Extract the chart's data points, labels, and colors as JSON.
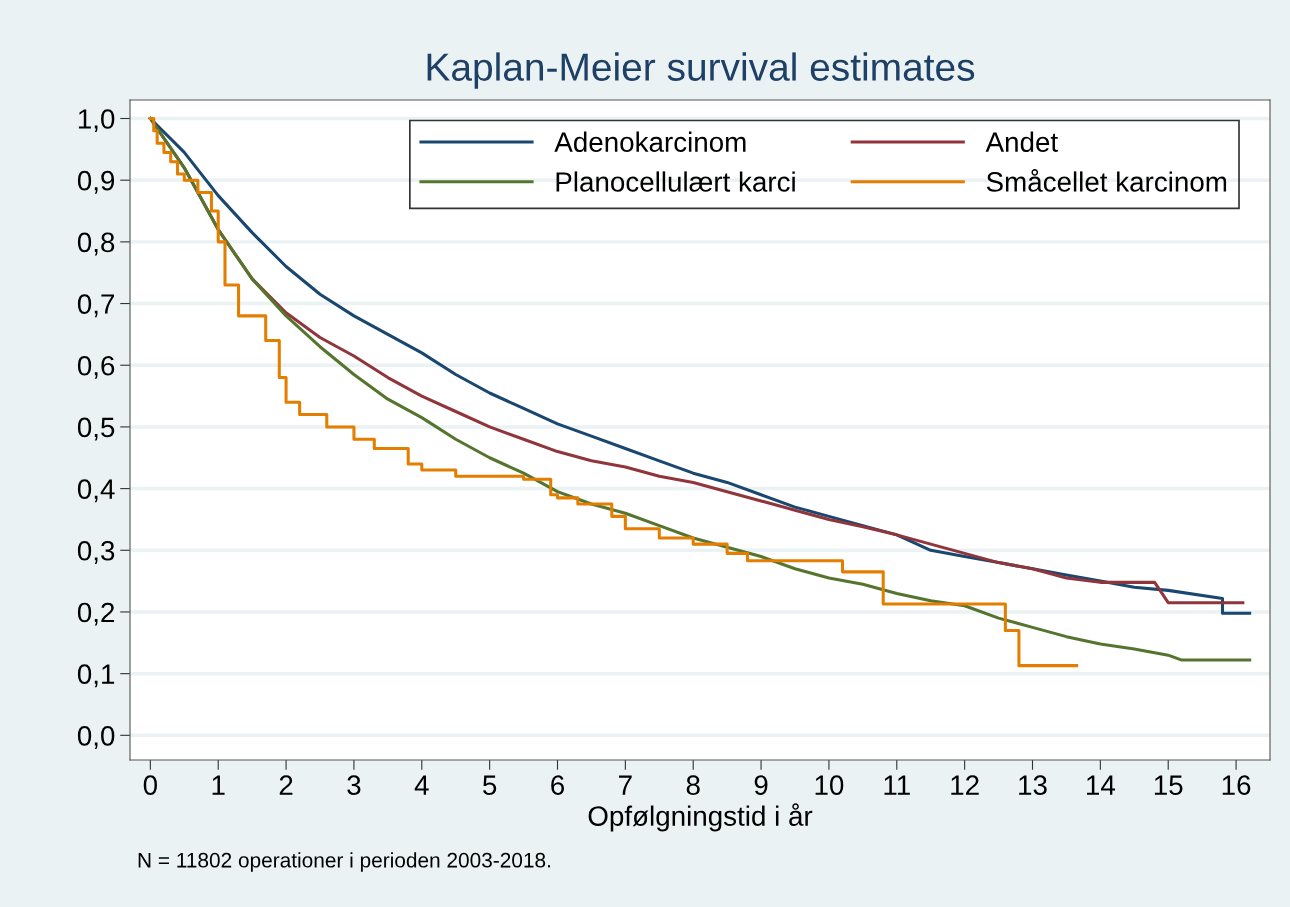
{
  "chart_data": {
    "type": "step",
    "title": "Kaplan-Meier survival estimates",
    "xlabel": "Opfølgningstid i år",
    "annotations": [
      "N = 11802 operationer i perioden 2003-2018."
    ],
    "xlim": [
      -0.3,
      16.5
    ],
    "xticks": [
      0,
      1,
      2,
      3,
      4,
      5,
      6,
      7,
      8,
      9,
      10,
      11,
      12,
      13,
      14,
      15,
      16
    ],
    "ylim": [
      -0.04,
      1.03
    ],
    "yticks": [
      {
        "value": 0,
        "label": "0,0"
      },
      {
        "value": 0.1,
        "label": "0,1"
      },
      {
        "value": 0.2,
        "label": "0,2"
      },
      {
        "value": 0.3,
        "label": "0,3"
      },
      {
        "value": 0.4,
        "label": "0,4"
      },
      {
        "value": 0.5,
        "label": "0,5"
      },
      {
        "value": 0.6,
        "label": "0,6"
      },
      {
        "value": 0.7,
        "label": "0,7"
      },
      {
        "value": 0.8,
        "label": "0,8"
      },
      {
        "value": 0.9,
        "label": "0,9"
      },
      {
        "value": 1.0,
        "label": "1,0"
      }
    ],
    "grid": "y",
    "legend": "top right",
    "marker": "none",
    "line_style": "solid",
    "series": [
      {
        "name": "Adenokarcinom",
        "color": "#1a476f",
        "type": "line",
        "x": [
          0,
          0.5,
          1,
          1.5,
          2,
          2.5,
          3,
          3.5,
          4,
          4.5,
          5,
          5.5,
          6,
          6.5,
          7,
          7.5,
          8,
          8.5,
          9,
          9.5,
          10,
          10.5,
          11,
          11.5,
          12,
          12.5,
          13,
          13.5,
          14,
          14.5,
          15,
          15.8,
          15.8,
          16.2
        ],
        "values": [
          1.0,
          0.945,
          0.875,
          0.815,
          0.76,
          0.715,
          0.68,
          0.65,
          0.62,
          0.585,
          0.555,
          0.53,
          0.505,
          0.485,
          0.465,
          0.445,
          0.425,
          0.41,
          0.39,
          0.37,
          0.355,
          0.34,
          0.325,
          0.3,
          0.29,
          0.28,
          0.27,
          0.26,
          0.25,
          0.24,
          0.235,
          0.222,
          0.198,
          0.198
        ]
      },
      {
        "name": "Andet",
        "color": "#90353b",
        "type": "line",
        "x": [
          0,
          0.5,
          1,
          1.5,
          2,
          2.5,
          3,
          3.5,
          4,
          4.5,
          5,
          5.5,
          6,
          6.5,
          7,
          7.5,
          8,
          8.5,
          9,
          9.5,
          10,
          10.5,
          11,
          11.5,
          12,
          12.5,
          13,
          13.5,
          14,
          14.8,
          15,
          16.1
        ],
        "values": [
          1.0,
          0.92,
          0.82,
          0.74,
          0.685,
          0.645,
          0.615,
          0.58,
          0.55,
          0.525,
          0.5,
          0.48,
          0.46,
          0.445,
          0.435,
          0.42,
          0.41,
          0.395,
          0.38,
          0.365,
          0.35,
          0.338,
          0.325,
          0.31,
          0.295,
          0.28,
          0.27,
          0.255,
          0.248,
          0.248,
          0.215,
          0.215
        ]
      },
      {
        "name": "Planocellulært karci",
        "color": "#55752f",
        "type": "line",
        "x": [
          0,
          0.5,
          1,
          1.5,
          2,
          2.5,
          3,
          3.5,
          4,
          4.5,
          5,
          5.5,
          6,
          6.5,
          7,
          7.5,
          8,
          8.5,
          9,
          9.5,
          10,
          10.5,
          11,
          11.5,
          12,
          12.5,
          13,
          13.5,
          14,
          14.5,
          15,
          15.2,
          16.2
        ],
        "values": [
          1.0,
          0.92,
          0.82,
          0.74,
          0.68,
          0.63,
          0.585,
          0.545,
          0.515,
          0.48,
          0.45,
          0.425,
          0.395,
          0.375,
          0.36,
          0.34,
          0.32,
          0.305,
          0.29,
          0.27,
          0.255,
          0.245,
          0.23,
          0.218,
          0.21,
          0.19,
          0.175,
          0.16,
          0.148,
          0.14,
          0.13,
          0.122,
          0.122
        ]
      },
      {
        "name": "Småcellet karcinom",
        "color": "#e37e00",
        "x": [
          0,
          0.05,
          0.1,
          0.2,
          0.3,
          0.4,
          0.5,
          0.7,
          0.9,
          1.0,
          1.1,
          1.3,
          1.7,
          1.9,
          2.0,
          2.2,
          2.6,
          3.0,
          3.3,
          3.8,
          4.0,
          4.5,
          5.5,
          5.9,
          6.0,
          6.3,
          6.8,
          7.0,
          7.5,
          8.0,
          8.5,
          8.8,
          10.2,
          10.8,
          12.6,
          12.8,
          13.65
        ],
        "values": [
          1.0,
          0.98,
          0.96,
          0.945,
          0.93,
          0.91,
          0.9,
          0.88,
          0.85,
          0.8,
          0.73,
          0.68,
          0.64,
          0.58,
          0.54,
          0.52,
          0.5,
          0.48,
          0.465,
          0.44,
          0.43,
          0.42,
          0.415,
          0.39,
          0.385,
          0.375,
          0.355,
          0.335,
          0.32,
          0.31,
          0.295,
          0.283,
          0.265,
          0.213,
          0.17,
          0.113,
          0.113
        ]
      }
    ]
  }
}
